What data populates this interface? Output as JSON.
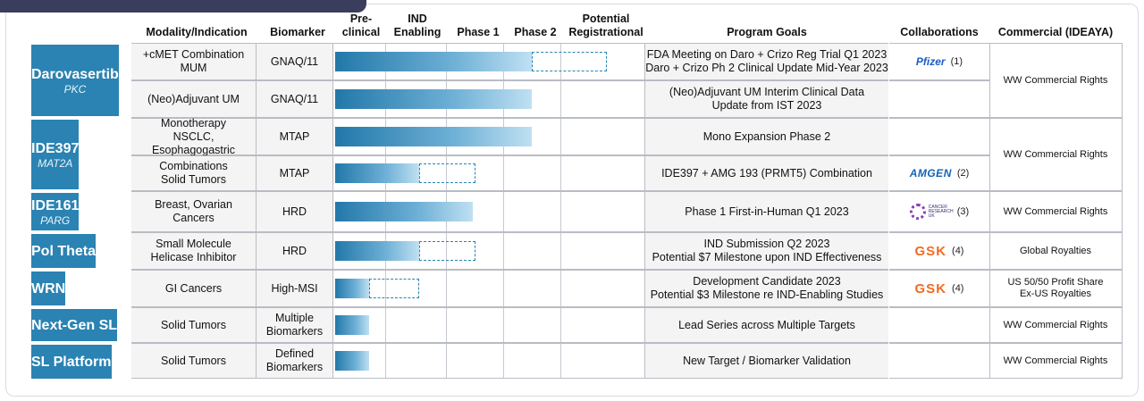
{
  "headers": {
    "modality": "Modality/Indication",
    "biomarker": "Biomarker",
    "preclinical": "Pre-\nclinical",
    "ind_enabling": "IND\nEnabling",
    "phase1": "Phase 1",
    "phase2": "Phase 2",
    "potential_registrational": "Potential\nRegistrational",
    "program_goals": "Program Goals",
    "collaborations": "Collaborations",
    "commercial": "Commercial (IDEAYA)"
  },
  "programs": [
    {
      "name": "Darovasertib",
      "target": "PKC"
    },
    {
      "name": "IDE397",
      "target": "MAT2A"
    },
    {
      "name": "IDE161",
      "target": "PARG"
    },
    {
      "name": "Pol Theta",
      "target": ""
    },
    {
      "name": "WRN",
      "target": ""
    },
    {
      "name": "Next-Gen SL",
      "target": ""
    },
    {
      "name": "SL Platform",
      "target": ""
    }
  ],
  "rows": [
    {
      "modality": "+cMET Combination\nMUM",
      "biomarker": "GNAQ/11",
      "progress": 0.63,
      "planned_to": 0.87,
      "goal": "FDA Meeting on Daro + Crizo Reg Trial Q1 2023\nDaro + Crizo Ph 2 Clinical Update Mid-Year 2023"
    },
    {
      "modality": "(Neo)Adjuvant UM",
      "biomarker": "GNAQ/11",
      "progress": 0.63,
      "planned_to": null,
      "goal": "(Neo)Adjuvant UM Interim Clinical Data\nUpdate from IST 2023"
    },
    {
      "modality": "Monotherapy\nNSCLC, Esophagogastric",
      "biomarker": "MTAP",
      "progress": 0.63,
      "planned_to": null,
      "goal": "Mono Expansion Phase 2"
    },
    {
      "modality": "Combinations\nSolid Tumors",
      "biomarker": "MTAP",
      "progress": 0.27,
      "planned_to": 0.45,
      "goal": "IDE397 + AMG 193 (PRMT5) Combination"
    },
    {
      "modality": "Breast, Ovarian\nCancers",
      "biomarker": "HRD",
      "progress": 0.44,
      "planned_to": null,
      "goal": "Phase 1 First-in-Human Q1 2023"
    },
    {
      "modality": "Small Molecule\nHelicase Inhibitor",
      "biomarker": "HRD",
      "progress": 0.27,
      "planned_to": 0.45,
      "goal": "IND Submission Q2 2023\nPotential $7 Milestone upon IND Effectiveness"
    },
    {
      "modality": "GI Cancers",
      "biomarker": "High-MSI",
      "progress": 0.11,
      "planned_to": 0.27,
      "goal": "Development Candidate 2023\nPotential $3 Milestone re IND-Enabling Studies"
    },
    {
      "modality": "Solid Tumors",
      "biomarker": "Multiple\nBiomarkers",
      "progress": 0.11,
      "planned_to": null,
      "goal": "Lead Series across Multiple Targets"
    },
    {
      "modality": "Solid Tumors",
      "biomarker": "Defined\nBiomarkers",
      "progress": 0.11,
      "planned_to": null,
      "goal": "New Target / Biomarker Validation"
    }
  ],
  "collaborations": [
    {
      "partner": "Pfizer",
      "note": "(1)"
    },
    {
      "partner": "AMGEN",
      "note": "(2)"
    },
    {
      "partner": "CANCER RESEARCH UK",
      "note": "(3)"
    },
    {
      "partner": "GSK",
      "note": "(4)"
    },
    {
      "partner": "GSK",
      "note": "(4)"
    }
  ],
  "commercial": [
    "WW Commercial Rights",
    "WW Commercial Rights",
    "WW Commercial Rights",
    "Global Royalties",
    "US 50/50 Profit Share\nEx-US Royalties",
    "WW Commercial Rights",
    "WW Commercial Rights"
  ],
  "colors": {
    "program_block": "#2a83b2",
    "pfizer": "#1f5cc4",
    "amgen": "#1464b4",
    "gsk": "#f26b22",
    "cruk": "#8a3fb8"
  }
}
